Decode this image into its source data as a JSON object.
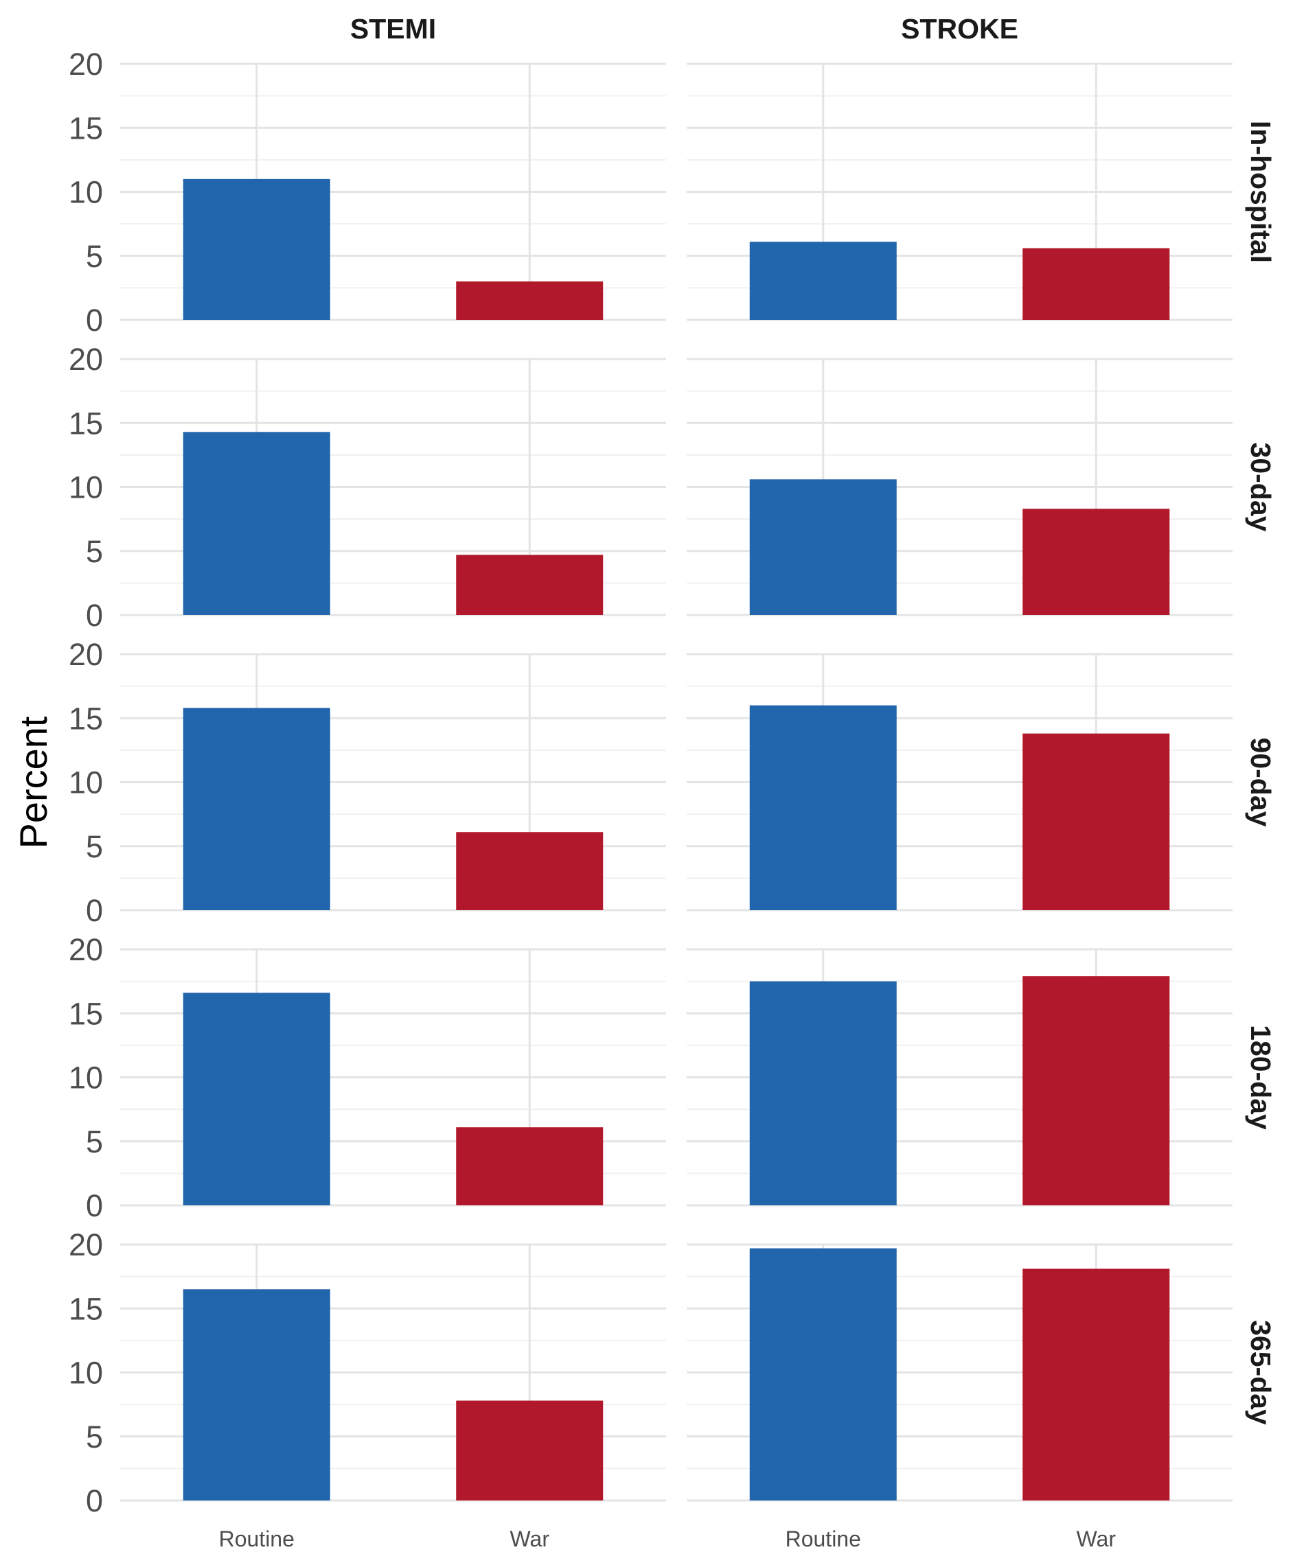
{
  "chart_data": {
    "type": "bar",
    "layout": "facet-grid",
    "ylabel": "Percent",
    "xlabel": "",
    "ylim": [
      0,
      20
    ],
    "yticks": [
      0,
      5,
      10,
      15,
      20
    ],
    "categories": [
      "Routine",
      "War"
    ],
    "category_colors": {
      "Routine": "#2166ac",
      "War": "#b2182b"
    },
    "grid": true,
    "col_facets": [
      "STEMI",
      "STROKE"
    ],
    "row_facets": [
      "In-hospital",
      "30-day",
      "90-day",
      "180-day",
      "365-day"
    ],
    "panels": [
      {
        "row": "In-hospital",
        "col": "STEMI",
        "values": [
          11.0,
          3.0
        ]
      },
      {
        "row": "In-hospital",
        "col": "STROKE",
        "values": [
          6.1,
          5.6
        ]
      },
      {
        "row": "30-day",
        "col": "STEMI",
        "values": [
          14.3,
          4.7
        ]
      },
      {
        "row": "30-day",
        "col": "STROKE",
        "values": [
          10.6,
          8.3
        ]
      },
      {
        "row": "90-day",
        "col": "STEMI",
        "values": [
          15.8,
          6.1
        ]
      },
      {
        "row": "90-day",
        "col": "STROKE",
        "values": [
          16.0,
          13.8
        ]
      },
      {
        "row": "180-day",
        "col": "STEMI",
        "values": [
          16.6,
          6.1
        ]
      },
      {
        "row": "180-day",
        "col": "STROKE",
        "values": [
          17.5,
          17.9
        ]
      },
      {
        "row": "365-day",
        "col": "STEMI",
        "values": [
          16.5,
          7.8
        ]
      },
      {
        "row": "365-day",
        "col": "STROKE",
        "values": [
          19.7,
          18.1
        ]
      }
    ]
  }
}
